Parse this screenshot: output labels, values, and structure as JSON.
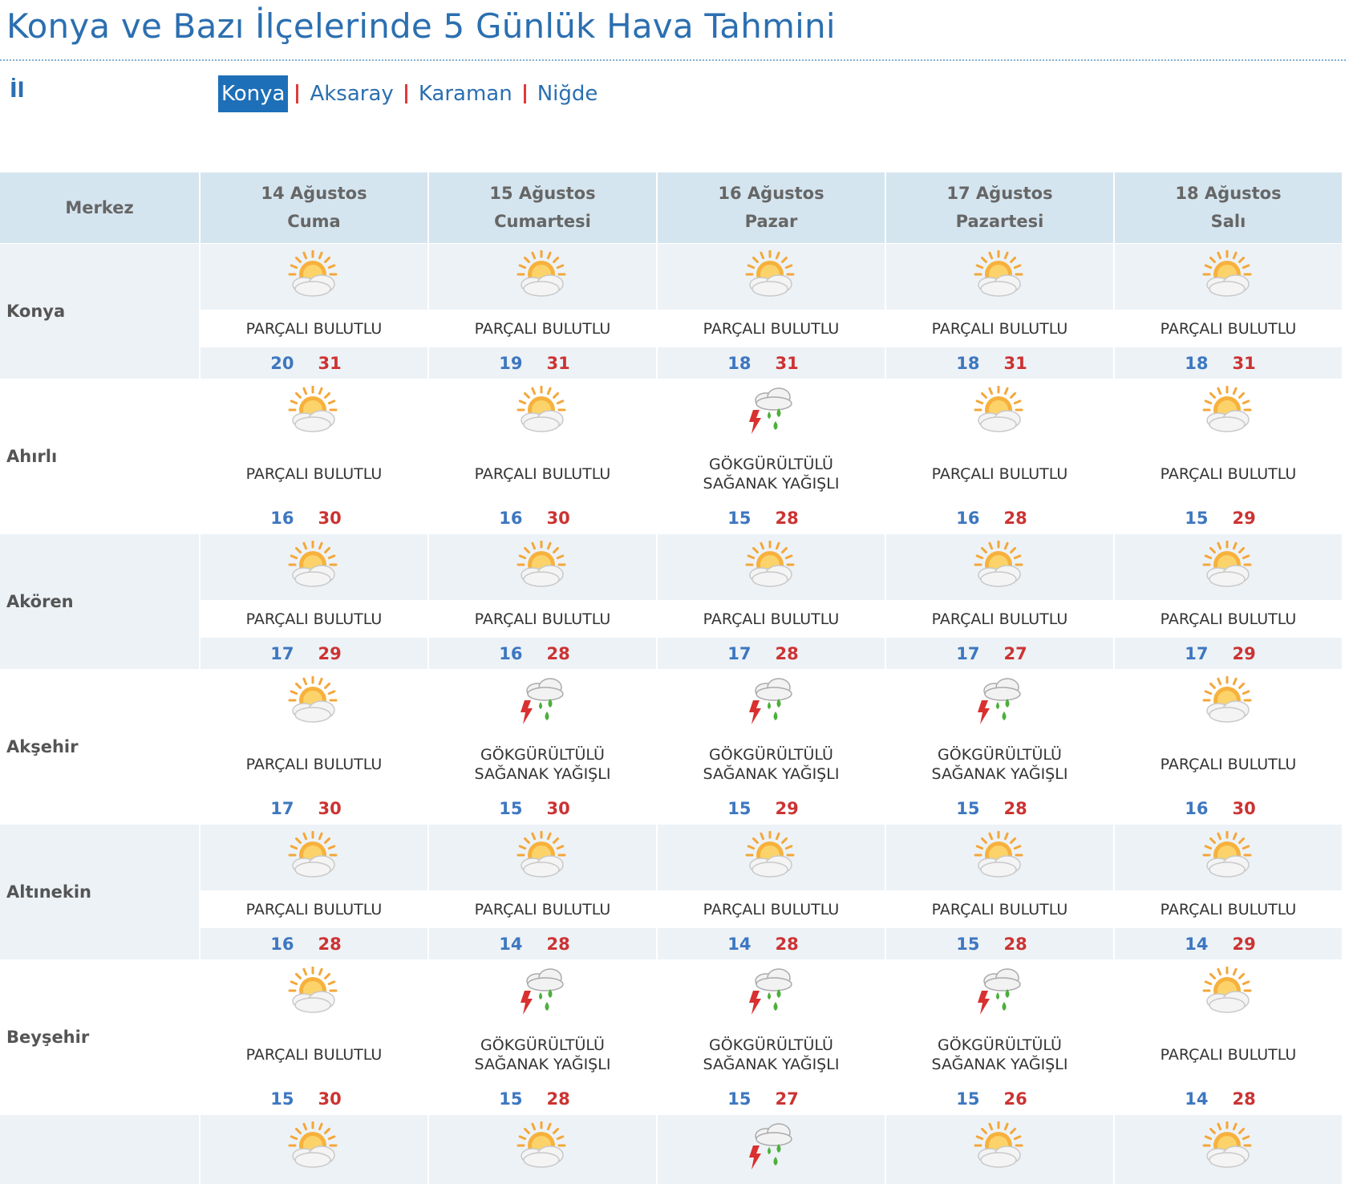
{
  "header": {
    "title": "Konya ve Bazı İlçelerinde 5 Günlük Hava Tahmini"
  },
  "nav": {
    "label": "İl",
    "items": [
      "Konya",
      "Aksaray",
      "Karaman",
      "Niğde"
    ],
    "active": 0
  },
  "table": {
    "corner": "Merkez",
    "days": [
      {
        "date": "14 Ağustos",
        "day": "Cuma"
      },
      {
        "date": "15 Ağustos",
        "day": "Cumartesi"
      },
      {
        "date": "16 Ağustos",
        "day": "Pazar"
      },
      {
        "date": "17 Ağustos",
        "day": "Pazartesi"
      },
      {
        "date": "18 Ağustos",
        "day": "Salı"
      }
    ],
    "rows": [
      {
        "name": "Konya",
        "cells": [
          {
            "condition": "PARÇALI BULUTLU",
            "min": 20,
            "max": 31
          },
          {
            "condition": "PARÇALI BULUTLU",
            "min": 19,
            "max": 31
          },
          {
            "condition": "PARÇALI BULUTLU",
            "min": 18,
            "max": 31
          },
          {
            "condition": "PARÇALI BULUTLU",
            "min": 18,
            "max": 31
          },
          {
            "condition": "PARÇALI BULUTLU",
            "min": 18,
            "max": 31
          }
        ]
      },
      {
        "name": "Ahırlı",
        "cells": [
          {
            "condition": "PARÇALI BULUTLU",
            "min": 16,
            "max": 30
          },
          {
            "condition": "PARÇALI BULUTLU",
            "min": 16,
            "max": 30
          },
          {
            "condition": "GÖKGÜRÜLTÜLÜ SAĞANAK YAĞIŞLI",
            "min": 15,
            "max": 28
          },
          {
            "condition": "PARÇALI BULUTLU",
            "min": 16,
            "max": 28
          },
          {
            "condition": "PARÇALI BULUTLU",
            "min": 15,
            "max": 29
          }
        ]
      },
      {
        "name": "Akören",
        "cells": [
          {
            "condition": "PARÇALI BULUTLU",
            "min": 17,
            "max": 29
          },
          {
            "condition": "PARÇALI BULUTLU",
            "min": 16,
            "max": 28
          },
          {
            "condition": "PARÇALI BULUTLU",
            "min": 17,
            "max": 28
          },
          {
            "condition": "PARÇALI BULUTLU",
            "min": 17,
            "max": 27
          },
          {
            "condition": "PARÇALI BULUTLU",
            "min": 17,
            "max": 29
          }
        ]
      },
      {
        "name": "Akşehir",
        "cells": [
          {
            "condition": "PARÇALI BULUTLU",
            "min": 17,
            "max": 30
          },
          {
            "condition": "GÖKGÜRÜLTÜLÜ SAĞANAK YAĞIŞLI",
            "min": 15,
            "max": 30
          },
          {
            "condition": "GÖKGÜRÜLTÜLÜ SAĞANAK YAĞIŞLI",
            "min": 15,
            "max": 29
          },
          {
            "condition": "GÖKGÜRÜLTÜLÜ SAĞANAK YAĞIŞLI",
            "min": 15,
            "max": 28
          },
          {
            "condition": "PARÇALI BULUTLU",
            "min": 16,
            "max": 30
          }
        ]
      },
      {
        "name": "Altınekin",
        "cells": [
          {
            "condition": "PARÇALI BULUTLU",
            "min": 16,
            "max": 28
          },
          {
            "condition": "PARÇALI BULUTLU",
            "min": 14,
            "max": 28
          },
          {
            "condition": "PARÇALI BULUTLU",
            "min": 14,
            "max": 28
          },
          {
            "condition": "PARÇALI BULUTLU",
            "min": 15,
            "max": 28
          },
          {
            "condition": "PARÇALI BULUTLU",
            "min": 14,
            "max": 29
          }
        ]
      },
      {
        "name": "Beyşehir",
        "cells": [
          {
            "condition": "PARÇALI BULUTLU",
            "min": 15,
            "max": 30
          },
          {
            "condition": "GÖKGÜRÜLTÜLÜ SAĞANAK YAĞIŞLI",
            "min": 15,
            "max": 28
          },
          {
            "condition": "GÖKGÜRÜLTÜLÜ SAĞANAK YAĞIŞLI",
            "min": 15,
            "max": 27
          },
          {
            "condition": "GÖKGÜRÜLTÜLÜ SAĞANAK YAĞIŞLI",
            "min": 15,
            "max": 26
          },
          {
            "condition": "PARÇALI BULUTLU",
            "min": 14,
            "max": 28
          }
        ]
      }
    ]
  }
}
